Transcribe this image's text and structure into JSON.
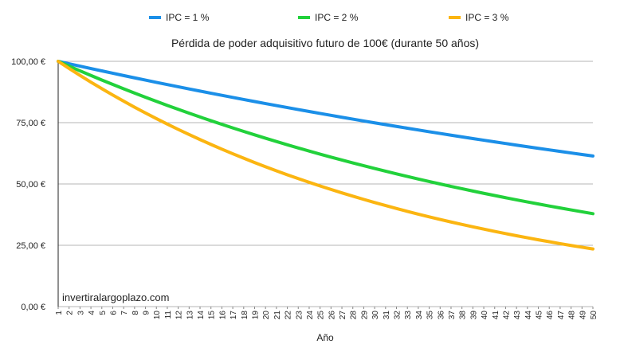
{
  "chart_data": {
    "type": "line",
    "title": "Pérdida de poder adquisitivo futuro de 100€ (durante 50 años)",
    "xlabel": "Año",
    "ylabel": "",
    "x": [
      1,
      2,
      3,
      4,
      5,
      6,
      7,
      8,
      9,
      10,
      11,
      12,
      13,
      14,
      15,
      16,
      17,
      18,
      19,
      20,
      21,
      22,
      23,
      24,
      25,
      26,
      27,
      28,
      29,
      30,
      31,
      32,
      33,
      34,
      35,
      36,
      37,
      38,
      39,
      40,
      41,
      42,
      43,
      44,
      45,
      46,
      47,
      48,
      49,
      50
    ],
    "xlim": [
      1,
      50
    ],
    "ylim": [
      0,
      100
    ],
    "yticks": [
      {
        "value": 0,
        "label": "0,00 €"
      },
      {
        "value": 25,
        "label": "25,00 €"
      },
      {
        "value": 50,
        "label": "50,00 €"
      },
      {
        "value": 75,
        "label": "75,00 €"
      },
      {
        "value": 100,
        "label": "100,00 €"
      }
    ],
    "grid": true,
    "legend": "top",
    "series": [
      {
        "name": "IPC = 1 %",
        "color": "#1b8fe8",
        "values": [
          100.0,
          99.01,
          98.03,
          97.06,
          96.1,
          95.15,
          94.2,
          93.27,
          92.35,
          91.43,
          90.53,
          89.63,
          88.74,
          87.87,
          87.0,
          86.13,
          85.28,
          84.44,
          83.6,
          82.77,
          81.95,
          81.14,
          80.34,
          79.54,
          78.76,
          77.98,
          77.2,
          76.44,
          75.68,
          74.93,
          74.19,
          73.46,
          72.73,
          72.01,
          71.29,
          70.59,
          69.89,
          69.2,
          68.51,
          67.83,
          67.16,
          66.5,
          65.84,
          65.19,
          64.54,
          63.9,
          63.27,
          62.64,
          62.02,
          61.41
        ]
      },
      {
        "name": "IPC = 2 %",
        "color": "#22d13b",
        "values": [
          100.0,
          98.04,
          96.12,
          94.23,
          92.38,
          90.57,
          88.8,
          87.06,
          85.35,
          83.68,
          82.03,
          80.43,
          78.85,
          77.3,
          75.79,
          74.3,
          72.84,
          71.42,
          70.02,
          68.64,
          67.3,
          65.98,
          64.68,
          63.42,
          62.17,
          60.95,
          59.76,
          58.59,
          57.44,
          56.31,
          55.21,
          54.12,
          53.06,
          52.02,
          51.0,
          50.0,
          49.02,
          48.06,
          47.12,
          46.19,
          45.29,
          44.4,
          43.53,
          42.68,
          41.84,
          41.02,
          40.21,
          39.43,
          38.65,
          37.89
        ]
      },
      {
        "name": "IPC = 3 %",
        "color": "#fbb511",
        "values": [
          100.0,
          97.09,
          94.26,
          91.51,
          88.85,
          86.26,
          83.75,
          81.31,
          78.94,
          76.64,
          74.41,
          72.24,
          70.14,
          68.1,
          66.11,
          64.19,
          62.32,
          60.5,
          58.74,
          57.03,
          55.37,
          53.75,
          52.19,
          50.67,
          49.19,
          47.76,
          46.37,
          45.02,
          43.71,
          42.43,
          41.2,
          40.0,
          38.83,
          37.7,
          36.6,
          35.54,
          34.5,
          33.5,
          32.52,
          31.58,
          30.66,
          29.76,
          28.9,
          28.06,
          27.24,
          26.45,
          25.68,
          24.93,
          24.2,
          23.5
        ]
      }
    ],
    "annotation": "invertiralargoplazo.com"
  }
}
